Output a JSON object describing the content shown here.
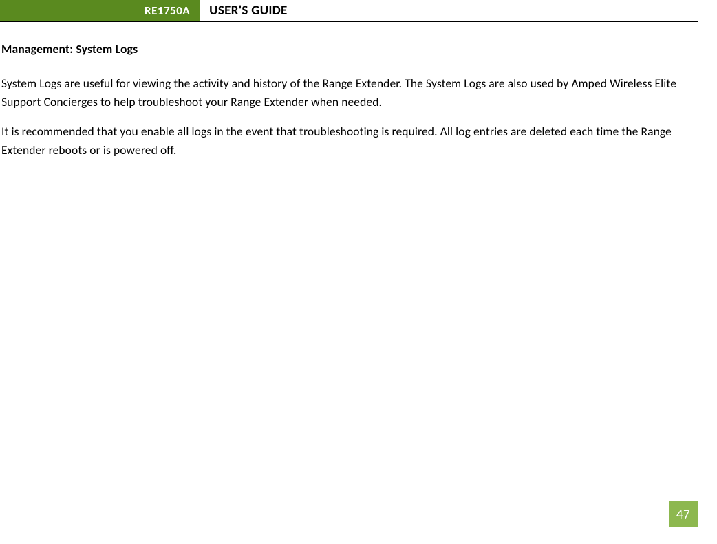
{
  "header": {
    "badge": "RE1750A",
    "title": "USER'S GUIDE"
  },
  "content": {
    "section_title": "Management: System Logs",
    "paragraph1": "System Logs are useful for viewing the activity and history of the Range Extender. The System Logs are also used by Amped Wireless Elite Support Concierges to help troubleshoot your Range Extender when needed.",
    "paragraph2": "It is recommended that you enable all logs in the event that troubleshooting is required. All log entries are deleted each time the Range Extender reboots or is powered off."
  },
  "page_number": "47",
  "colors": {
    "badge_bg": "#5a8a1f",
    "page_num_bg": "#8db84f",
    "text": "#000000",
    "white": "#ffffff"
  }
}
